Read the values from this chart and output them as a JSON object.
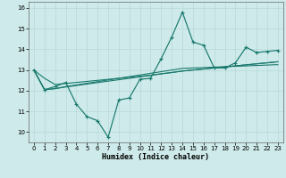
{
  "x": [
    0,
    1,
    2,
    3,
    4,
    5,
    6,
    7,
    8,
    9,
    10,
    11,
    12,
    13,
    14,
    15,
    16,
    17,
    18,
    19,
    20,
    21,
    22,
    23
  ],
  "y_main": [
    13.0,
    12.05,
    12.2,
    12.4,
    11.35,
    10.75,
    10.55,
    9.75,
    11.55,
    11.65,
    12.55,
    12.6,
    13.55,
    14.6,
    15.8,
    14.35,
    14.2,
    13.1,
    13.1,
    13.35,
    14.1,
    13.85,
    13.9,
    13.95
  ],
  "y_trend1": [
    13.0,
    12.6,
    12.3,
    12.35,
    12.4,
    12.45,
    12.5,
    12.55,
    12.6,
    12.65,
    12.7,
    12.75,
    12.82,
    12.88,
    12.95,
    13.0,
    13.05,
    13.1,
    13.15,
    13.2,
    13.25,
    13.3,
    13.35,
    13.4
  ],
  "y_trend2": [
    13.0,
    12.05,
    12.1,
    12.2,
    12.28,
    12.36,
    12.44,
    12.52,
    12.6,
    12.68,
    12.76,
    12.84,
    12.92,
    13.0,
    13.08,
    13.1,
    13.12,
    13.14,
    13.16,
    13.18,
    13.2,
    13.22,
    13.24,
    13.26
  ],
  "y_trend3": [
    13.0,
    12.05,
    12.1,
    12.18,
    12.25,
    12.32,
    12.39,
    12.46,
    12.53,
    12.6,
    12.67,
    12.74,
    12.81,
    12.88,
    12.95,
    13.0,
    13.05,
    13.1,
    13.15,
    13.2,
    13.25,
    13.3,
    13.35,
    13.4
  ],
  "color_main": "#1a7a6e",
  "color_trend": "#1a7a6e",
  "bg_color": "#ceeaea",
  "grid_color": "#b8d8d8",
  "xlabel": "Humidex (Indice chaleur)",
  "ylim": [
    9.5,
    16.3
  ],
  "xlim": [
    -0.5,
    23.5
  ],
  "yticks": [
    10,
    11,
    12,
    13,
    14,
    15,
    16
  ],
  "xticks": [
    0,
    1,
    2,
    3,
    4,
    5,
    6,
    7,
    8,
    9,
    10,
    11,
    12,
    13,
    14,
    15,
    16,
    17,
    18,
    19,
    20,
    21,
    22,
    23
  ]
}
